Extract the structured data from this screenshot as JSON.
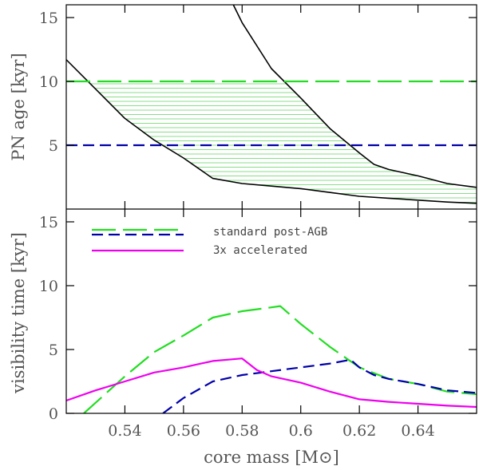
{
  "chart_data": [
    {
      "type": "line",
      "panel": "top",
      "xlabel": "",
      "ylabel": "PN age [kyr]",
      "xlim": [
        0.52,
        0.66
      ],
      "ylim": [
        0,
        16
      ],
      "yticks": [
        5,
        10,
        15
      ],
      "xticks": [
        0.54,
        0.56,
        0.58,
        0.6,
        0.62,
        0.64
      ],
      "hatched_region": {
        "description": "region between lower and upper black curves, clipped to PN age 0-10 kyr",
        "color": "#88dd88"
      },
      "series": [
        {
          "name": "lower-track",
          "color": "#000000",
          "style": "solid",
          "x": [
            0.52,
            0.53,
            0.54,
            0.55,
            0.56,
            0.57,
            0.58,
            0.59,
            0.6,
            0.61,
            0.62,
            0.63,
            0.64,
            0.65,
            0.66
          ],
          "y": [
            11.7,
            9.4,
            7.1,
            5.4,
            4.0,
            2.4,
            2.0,
            1.8,
            1.6,
            1.3,
            1.0,
            0.85,
            0.7,
            0.55,
            0.45
          ]
        },
        {
          "name": "upper-track",
          "color": "#000000",
          "style": "solid",
          "x": [
            0.577,
            0.58,
            0.59,
            0.6,
            0.61,
            0.62,
            0.625,
            0.63,
            0.64,
            0.65,
            0.66
          ],
          "y": [
            16,
            14.6,
            11.0,
            8.7,
            6.3,
            4.4,
            3.5,
            3.1,
            2.6,
            2.0,
            1.7
          ]
        },
        {
          "name": "age-limit-10",
          "color": "#22dd22",
          "style": "long-dash",
          "x": [
            0.52,
            0.66
          ],
          "y": [
            10,
            10
          ]
        },
        {
          "name": "age-limit-5",
          "color": "#0000aa",
          "style": "dash",
          "x": [
            0.52,
            0.66
          ],
          "y": [
            5,
            5
          ]
        }
      ]
    },
    {
      "type": "line",
      "panel": "bottom",
      "xlabel": "core mass [M⊙]",
      "ylabel": "visibility time [kyr]",
      "xlim": [
        0.52,
        0.66
      ],
      "ylim": [
        0,
        16
      ],
      "yticks": [
        0,
        5,
        10,
        15
      ],
      "xticks": [
        0.54,
        0.56,
        0.58,
        0.6,
        0.62,
        0.64
      ],
      "legend": {
        "position": "top-left",
        "entries": [
          {
            "label": "standard post-AGB",
            "series": [
              "standard-green",
              "standard-blue"
            ]
          },
          {
            "label": "3x accelerated",
            "series": [
              "accelerated"
            ]
          }
        ]
      },
      "series": [
        {
          "name": "standard-green",
          "color": "#22dd22",
          "style": "long-dash",
          "x": [
            0.526,
            0.54,
            0.55,
            0.56,
            0.57,
            0.58,
            0.59,
            0.593,
            0.6,
            0.61,
            0.62,
            0.63,
            0.64,
            0.65,
            0.66
          ],
          "y": [
            0,
            2.9,
            4.8,
            6.1,
            7.5,
            8.0,
            8.3,
            8.4,
            7.0,
            5.2,
            3.6,
            2.7,
            2.3,
            1.7,
            1.5
          ]
        },
        {
          "name": "standard-blue",
          "color": "#0000aa",
          "style": "dash",
          "x": [
            0.553,
            0.56,
            0.57,
            0.58,
            0.59,
            0.6,
            0.61,
            0.617,
            0.62,
            0.625,
            0.63,
            0.64,
            0.65,
            0.66
          ],
          "y": [
            0,
            1.2,
            2.5,
            3.0,
            3.3,
            3.6,
            3.9,
            4.2,
            3.6,
            3.0,
            2.7,
            2.3,
            1.8,
            1.6
          ]
        },
        {
          "name": "accelerated",
          "color": "#ee00ee",
          "style": "solid",
          "x": [
            0.52,
            0.53,
            0.54,
            0.55,
            0.56,
            0.57,
            0.58,
            0.585,
            0.59,
            0.6,
            0.61,
            0.62,
            0.63,
            0.64,
            0.65,
            0.66
          ],
          "y": [
            1.0,
            1.8,
            2.5,
            3.2,
            3.6,
            4.1,
            4.3,
            3.4,
            2.9,
            2.4,
            1.7,
            1.1,
            0.9,
            0.75,
            0.6,
            0.5
          ]
        }
      ]
    }
  ]
}
